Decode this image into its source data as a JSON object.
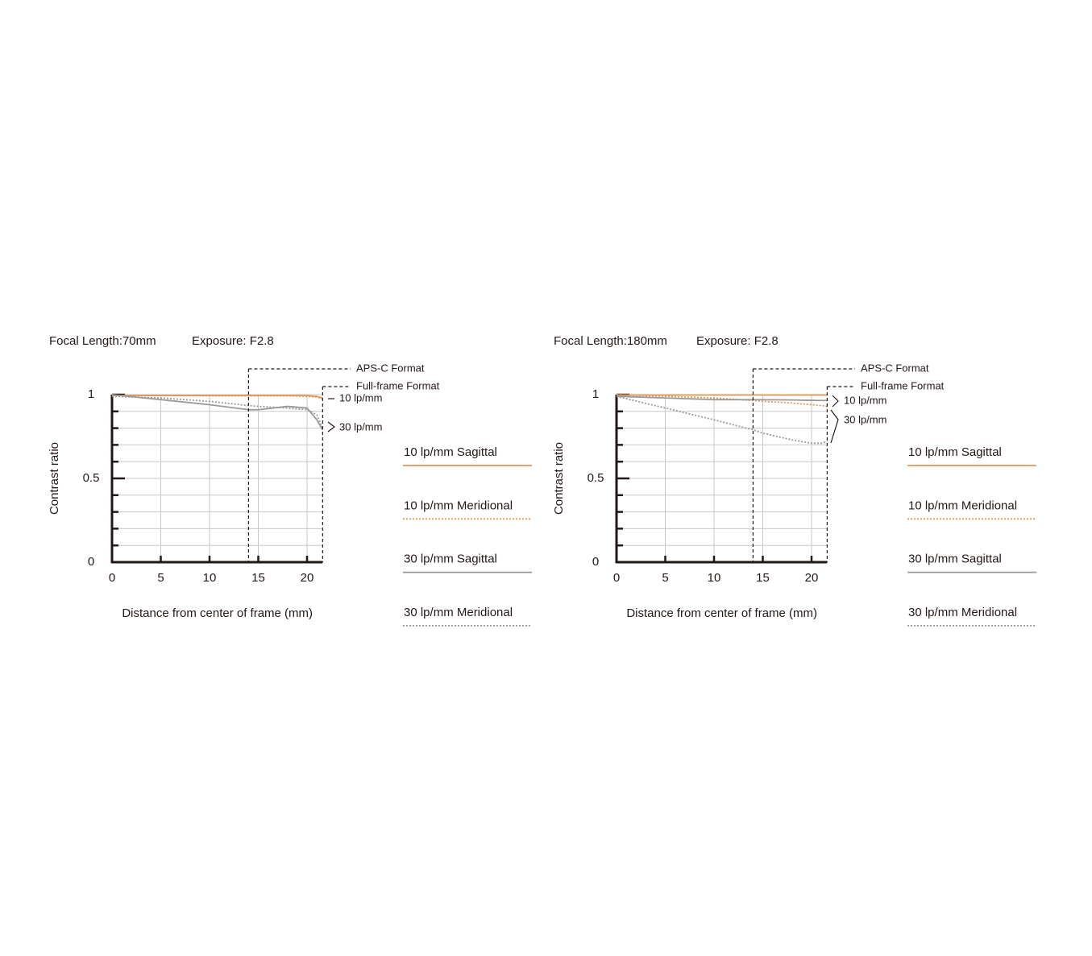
{
  "chart_data": [
    {
      "type": "line",
      "title": "Focal Length:70mm",
      "subtitle": "Exposure: F2.8",
      "x_label": "Distance from center of frame (mm)",
      "y_label": "Contrast ratio",
      "xlim": [
        0,
        21.6
      ],
      "ylim": [
        0,
        1
      ],
      "xticks": [
        0,
        5,
        10,
        15,
        20
      ],
      "yticks": [
        0,
        0.5,
        1
      ],
      "yminorticks": [
        0.1,
        0.2,
        0.3,
        0.4,
        0.6,
        0.7,
        0.8,
        0.9
      ],
      "grid": true,
      "format_lines": [
        {
          "x": 14,
          "label": "APS-C Format"
        },
        {
          "x": 21.6,
          "label": "Full-frame Format"
        }
      ],
      "annotations": [
        "10 lp/mm",
        "30 lp/mm"
      ],
      "x": [
        0,
        5,
        10,
        14,
        15,
        18,
        20,
        21,
        21.6
      ],
      "series": [
        {
          "name": "10 lp/mm Sagittal",
          "color": "#e0995a",
          "style": "solid",
          "values": [
            0.995,
            0.995,
            0.995,
            0.995,
            0.995,
            0.995,
            0.994,
            0.99,
            0.98
          ]
        },
        {
          "name": "10 lp/mm Meridional",
          "color": "#e0995a",
          "style": "dotted",
          "values": [
            0.995,
            0.995,
            0.993,
            0.993,
            0.993,
            0.993,
            0.99,
            0.985,
            0.975
          ]
        },
        {
          "name": "30 lp/mm Sagittal",
          "color": "#999999",
          "style": "solid",
          "values": [
            1.0,
            0.97,
            0.94,
            0.91,
            0.91,
            0.93,
            0.92,
            0.85,
            0.79
          ]
        },
        {
          "name": "30 lp/mm Meridional",
          "color": "#999999",
          "style": "dotted",
          "values": [
            0.99,
            0.98,
            0.96,
            0.935,
            0.93,
            0.92,
            0.91,
            0.88,
            0.8
          ]
        }
      ]
    },
    {
      "type": "line",
      "title": "Focal Length:180mm",
      "subtitle": "Exposure: F2.8",
      "x_label": "Distance from center of frame (mm)",
      "y_label": "Contrast ratio",
      "xlim": [
        0,
        21.6
      ],
      "ylim": [
        0,
        1
      ],
      "xticks": [
        0,
        5,
        10,
        15,
        20
      ],
      "yticks": [
        0,
        0.5,
        1
      ],
      "yminorticks": [
        0.1,
        0.2,
        0.3,
        0.4,
        0.6,
        0.7,
        0.8,
        0.9
      ],
      "grid": true,
      "format_lines": [
        {
          "x": 14,
          "label": "APS-C Format"
        },
        {
          "x": 21.6,
          "label": "Full-frame Format"
        }
      ],
      "annotations": [
        "10 lp/mm",
        "30 lp/mm"
      ],
      "x": [
        0,
        5,
        10,
        14,
        15,
        18,
        20,
        21,
        21.6
      ],
      "series": [
        {
          "name": "10 lp/mm Sagittal",
          "color": "#e0995a",
          "style": "solid",
          "values": [
            0.998,
            0.998,
            0.998,
            0.998,
            0.998,
            0.998,
            0.998,
            0.998,
            0.998
          ]
        },
        {
          "name": "10 lp/mm Meridional",
          "color": "#e0995a",
          "style": "dotted",
          "values": [
            1.0,
            0.99,
            0.98,
            0.965,
            0.96,
            0.95,
            0.94,
            0.935,
            0.93
          ]
        },
        {
          "name": "30 lp/mm Sagittal",
          "color": "#999999",
          "style": "solid",
          "values": [
            0.99,
            0.98,
            0.97,
            0.97,
            0.97,
            0.968,
            0.966,
            0.965,
            0.965
          ]
        },
        {
          "name": "30 lp/mm Meridional",
          "color": "#999999",
          "style": "dotted",
          "values": [
            0.99,
            0.92,
            0.85,
            0.79,
            0.77,
            0.73,
            0.71,
            0.71,
            0.72
          ]
        }
      ]
    }
  ]
}
